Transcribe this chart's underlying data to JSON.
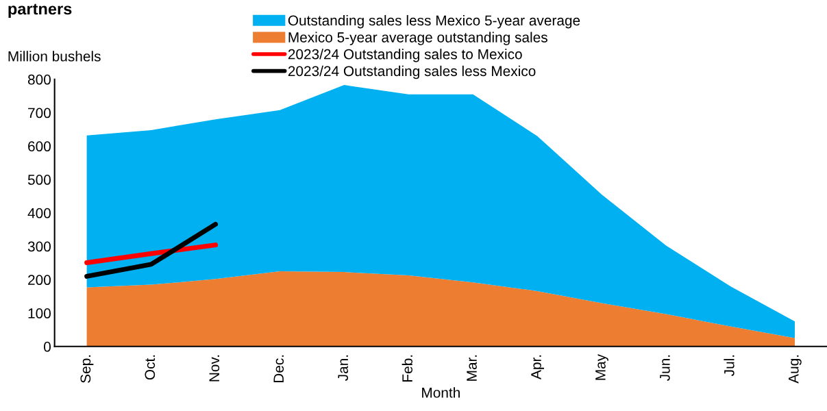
{
  "chart_data": {
    "type": "area",
    "title": "partners",
    "ylabel": "Million bushels",
    "xlabel": "Month",
    "categories": [
      "Sep.",
      "Oct.",
      "Nov.",
      "Dec.",
      "Jan.",
      "Feb.",
      "Mar.",
      "Apr.",
      "May",
      "Jun.",
      "Jul.",
      "Aug."
    ],
    "stacked": true,
    "series": [
      {
        "name": "Mexico 5-year average outstanding sales",
        "color": "#ed7d31",
        "values": [
          177,
          185,
          202,
          225,
          223,
          213,
          192,
          166,
          130,
          97,
          60,
          25
        ]
      },
      {
        "name": "Outstanding sales less Mexico 5-year average",
        "color": "#00b0f0",
        "values": [
          455,
          463,
          478,
          483,
          560,
          542,
          563,
          464,
          325,
          205,
          120,
          50
        ]
      },
      {
        "name": "2023/24 Outstanding sales to Mexico",
        "type": "line",
        "color": "#ff0000",
        "values": [
          251,
          278,
          304,
          null,
          null,
          null,
          null,
          null,
          null,
          null,
          null,
          null
        ]
      },
      {
        "name": "2023/24 Outstanding sales less Mexico",
        "type": "line",
        "color": "#000000",
        "values": [
          210,
          246,
          366,
          null,
          null,
          null,
          null,
          null,
          null,
          null,
          null,
          null
        ]
      }
    ],
    "ylim": [
      0,
      800
    ],
    "yticks": [
      0,
      100,
      200,
      300,
      400,
      500,
      600,
      700,
      800
    ],
    "grid": false,
    "legend": "top",
    "marker": "none",
    "line_style": "solid"
  }
}
